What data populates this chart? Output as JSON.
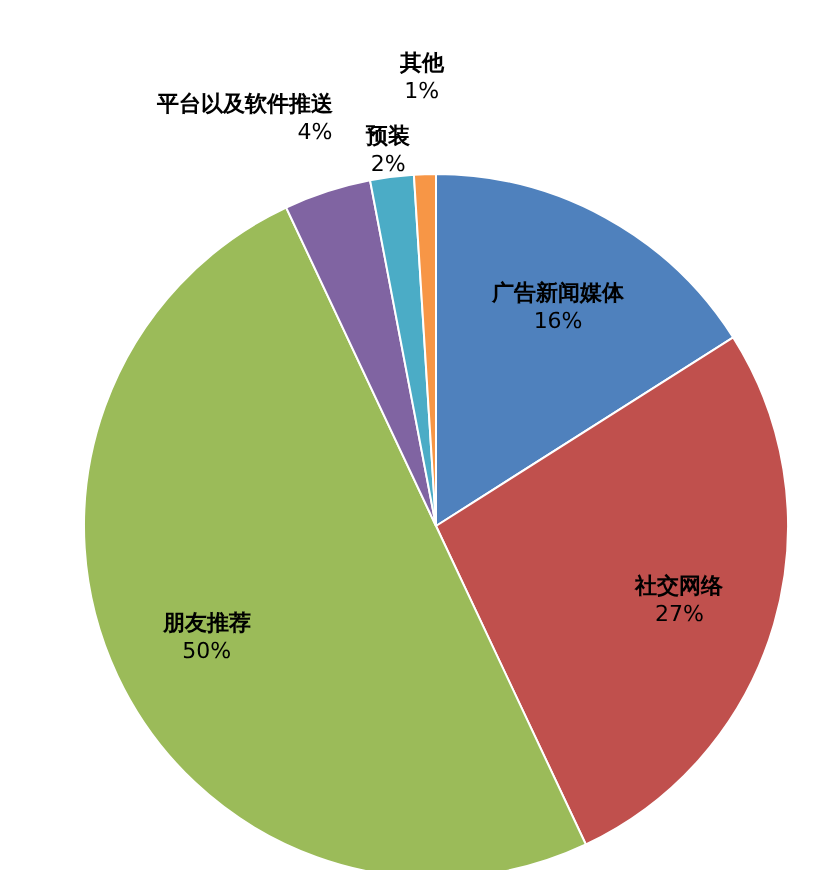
{
  "chart_data": {
    "type": "pie",
    "categories": [
      "广告新闻媒体",
      "社交网络",
      "朋友推荐",
      "平台以及软件推送",
      "预装",
      "其他"
    ],
    "values": [
      16,
      27,
      50,
      4,
      2,
      1
    ],
    "value_labels": [
      "16%",
      "27%",
      "50%",
      "4%",
      "2%",
      "1%"
    ],
    "colors": [
      "#4f81bd",
      "#c0504d",
      "#9bbb59",
      "#8064a2",
      "#4bacc6",
      "#f79646"
    ],
    "legend": false
  }
}
